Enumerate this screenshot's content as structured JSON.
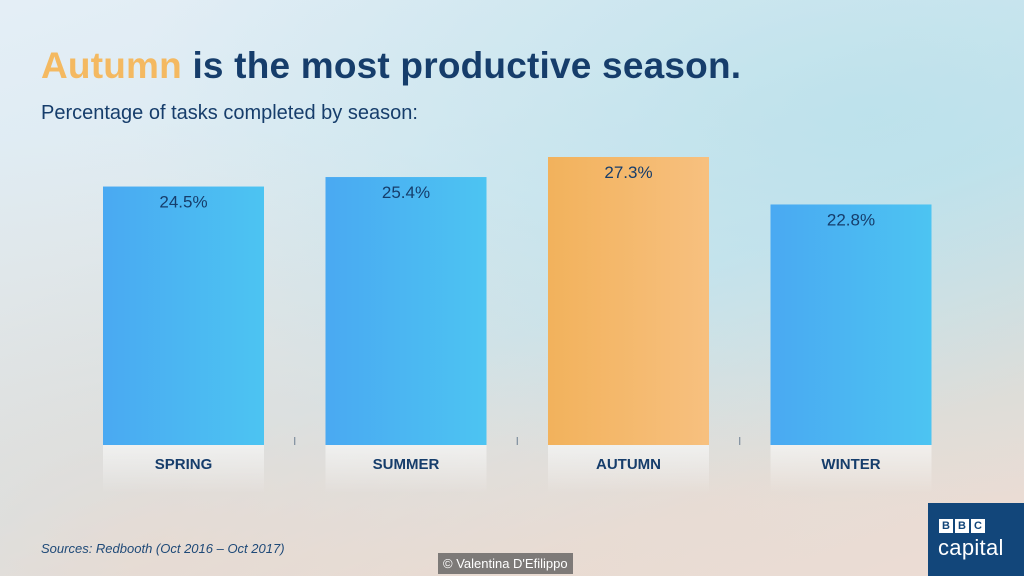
{
  "title": {
    "highlight": "Autumn",
    "rest": "is the most productive season."
  },
  "subtitle": "Percentage of tasks completed by season:",
  "sources": "Sources: Redbooth (Oct 2016 – Oct 2017)",
  "credit": "© Valentina D'Efilippo",
  "logo": {
    "letters": [
      "B",
      "B",
      "C"
    ],
    "word": "capital"
  },
  "colors": {
    "bar_blue_start": "#4aa9f2",
    "bar_blue_end": "#4cc4f2",
    "bar_orange_start": "#f2b25c",
    "bar_orange_end": "#f7c07f",
    "text_dark": "#163d6b",
    "title_accent": "#f4b961"
  },
  "chart_data": {
    "type": "bar",
    "categories": [
      "SPRING",
      "SUMMER",
      "AUTUMN",
      "WINTER"
    ],
    "values": [
      24.5,
      25.4,
      27.3,
      22.8
    ],
    "value_labels": [
      "24.5%",
      "25.4%",
      "27.3%",
      "22.8%"
    ],
    "highlight_index": 2,
    "ylim": [
      0,
      27.3
    ],
    "grid": false,
    "legend": "none"
  }
}
